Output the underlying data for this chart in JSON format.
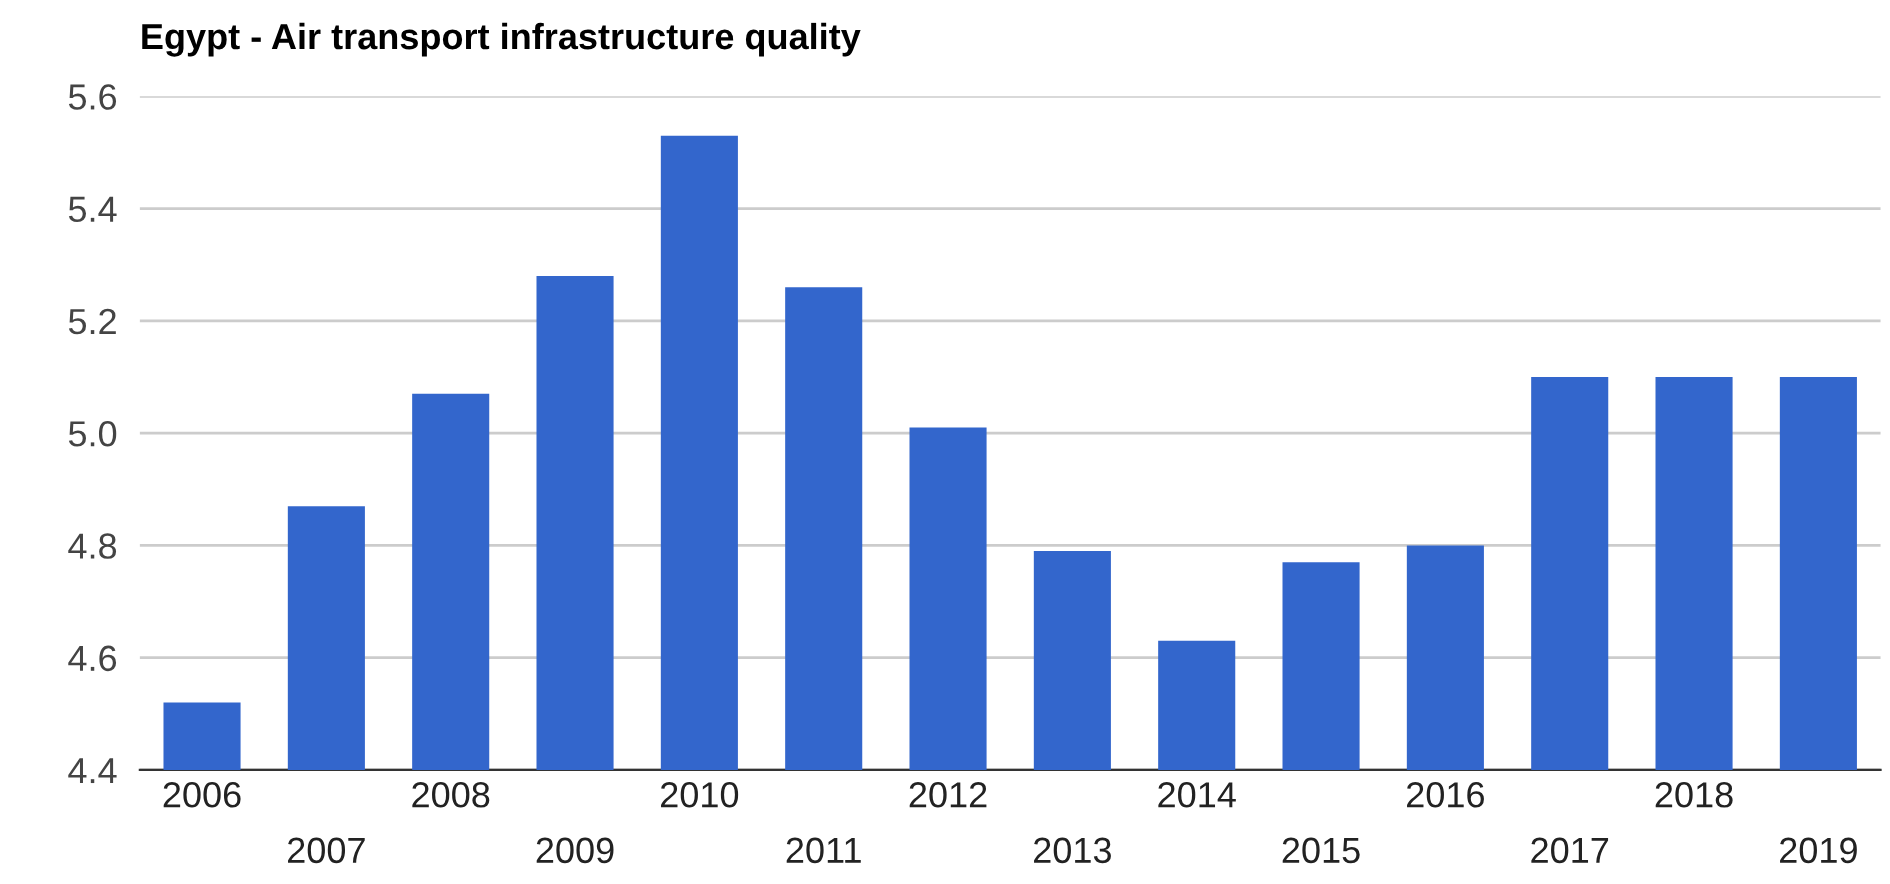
{
  "chart_data": {
    "type": "bar",
    "title": "Egypt - Air transport infrastructure quality",
    "categories": [
      "2006",
      "2007",
      "2008",
      "2009",
      "2010",
      "2011",
      "2012",
      "2013",
      "2014",
      "2015",
      "2016",
      "2017",
      "2018",
      "2019"
    ],
    "values": [
      4.52,
      4.87,
      5.07,
      5.28,
      5.53,
      5.26,
      5.01,
      4.79,
      4.63,
      4.77,
      4.8,
      5.1,
      5.1,
      5.1
    ],
    "color": "#3366cc",
    "ylim": [
      4.4,
      5.6
    ],
    "yticks": [
      {
        "value": 4.4,
        "label": "4.4"
      },
      {
        "value": 4.6,
        "label": "4.6"
      },
      {
        "value": 4.8,
        "label": "4.8"
      },
      {
        "value": 5.0,
        "label": "5.0"
      },
      {
        "value": 5.2,
        "label": "5.2"
      },
      {
        "value": 5.4,
        "label": "5.4"
      },
      {
        "value": 5.6,
        "label": "5.6"
      }
    ],
    "grid": "y",
    "legend": false
  }
}
